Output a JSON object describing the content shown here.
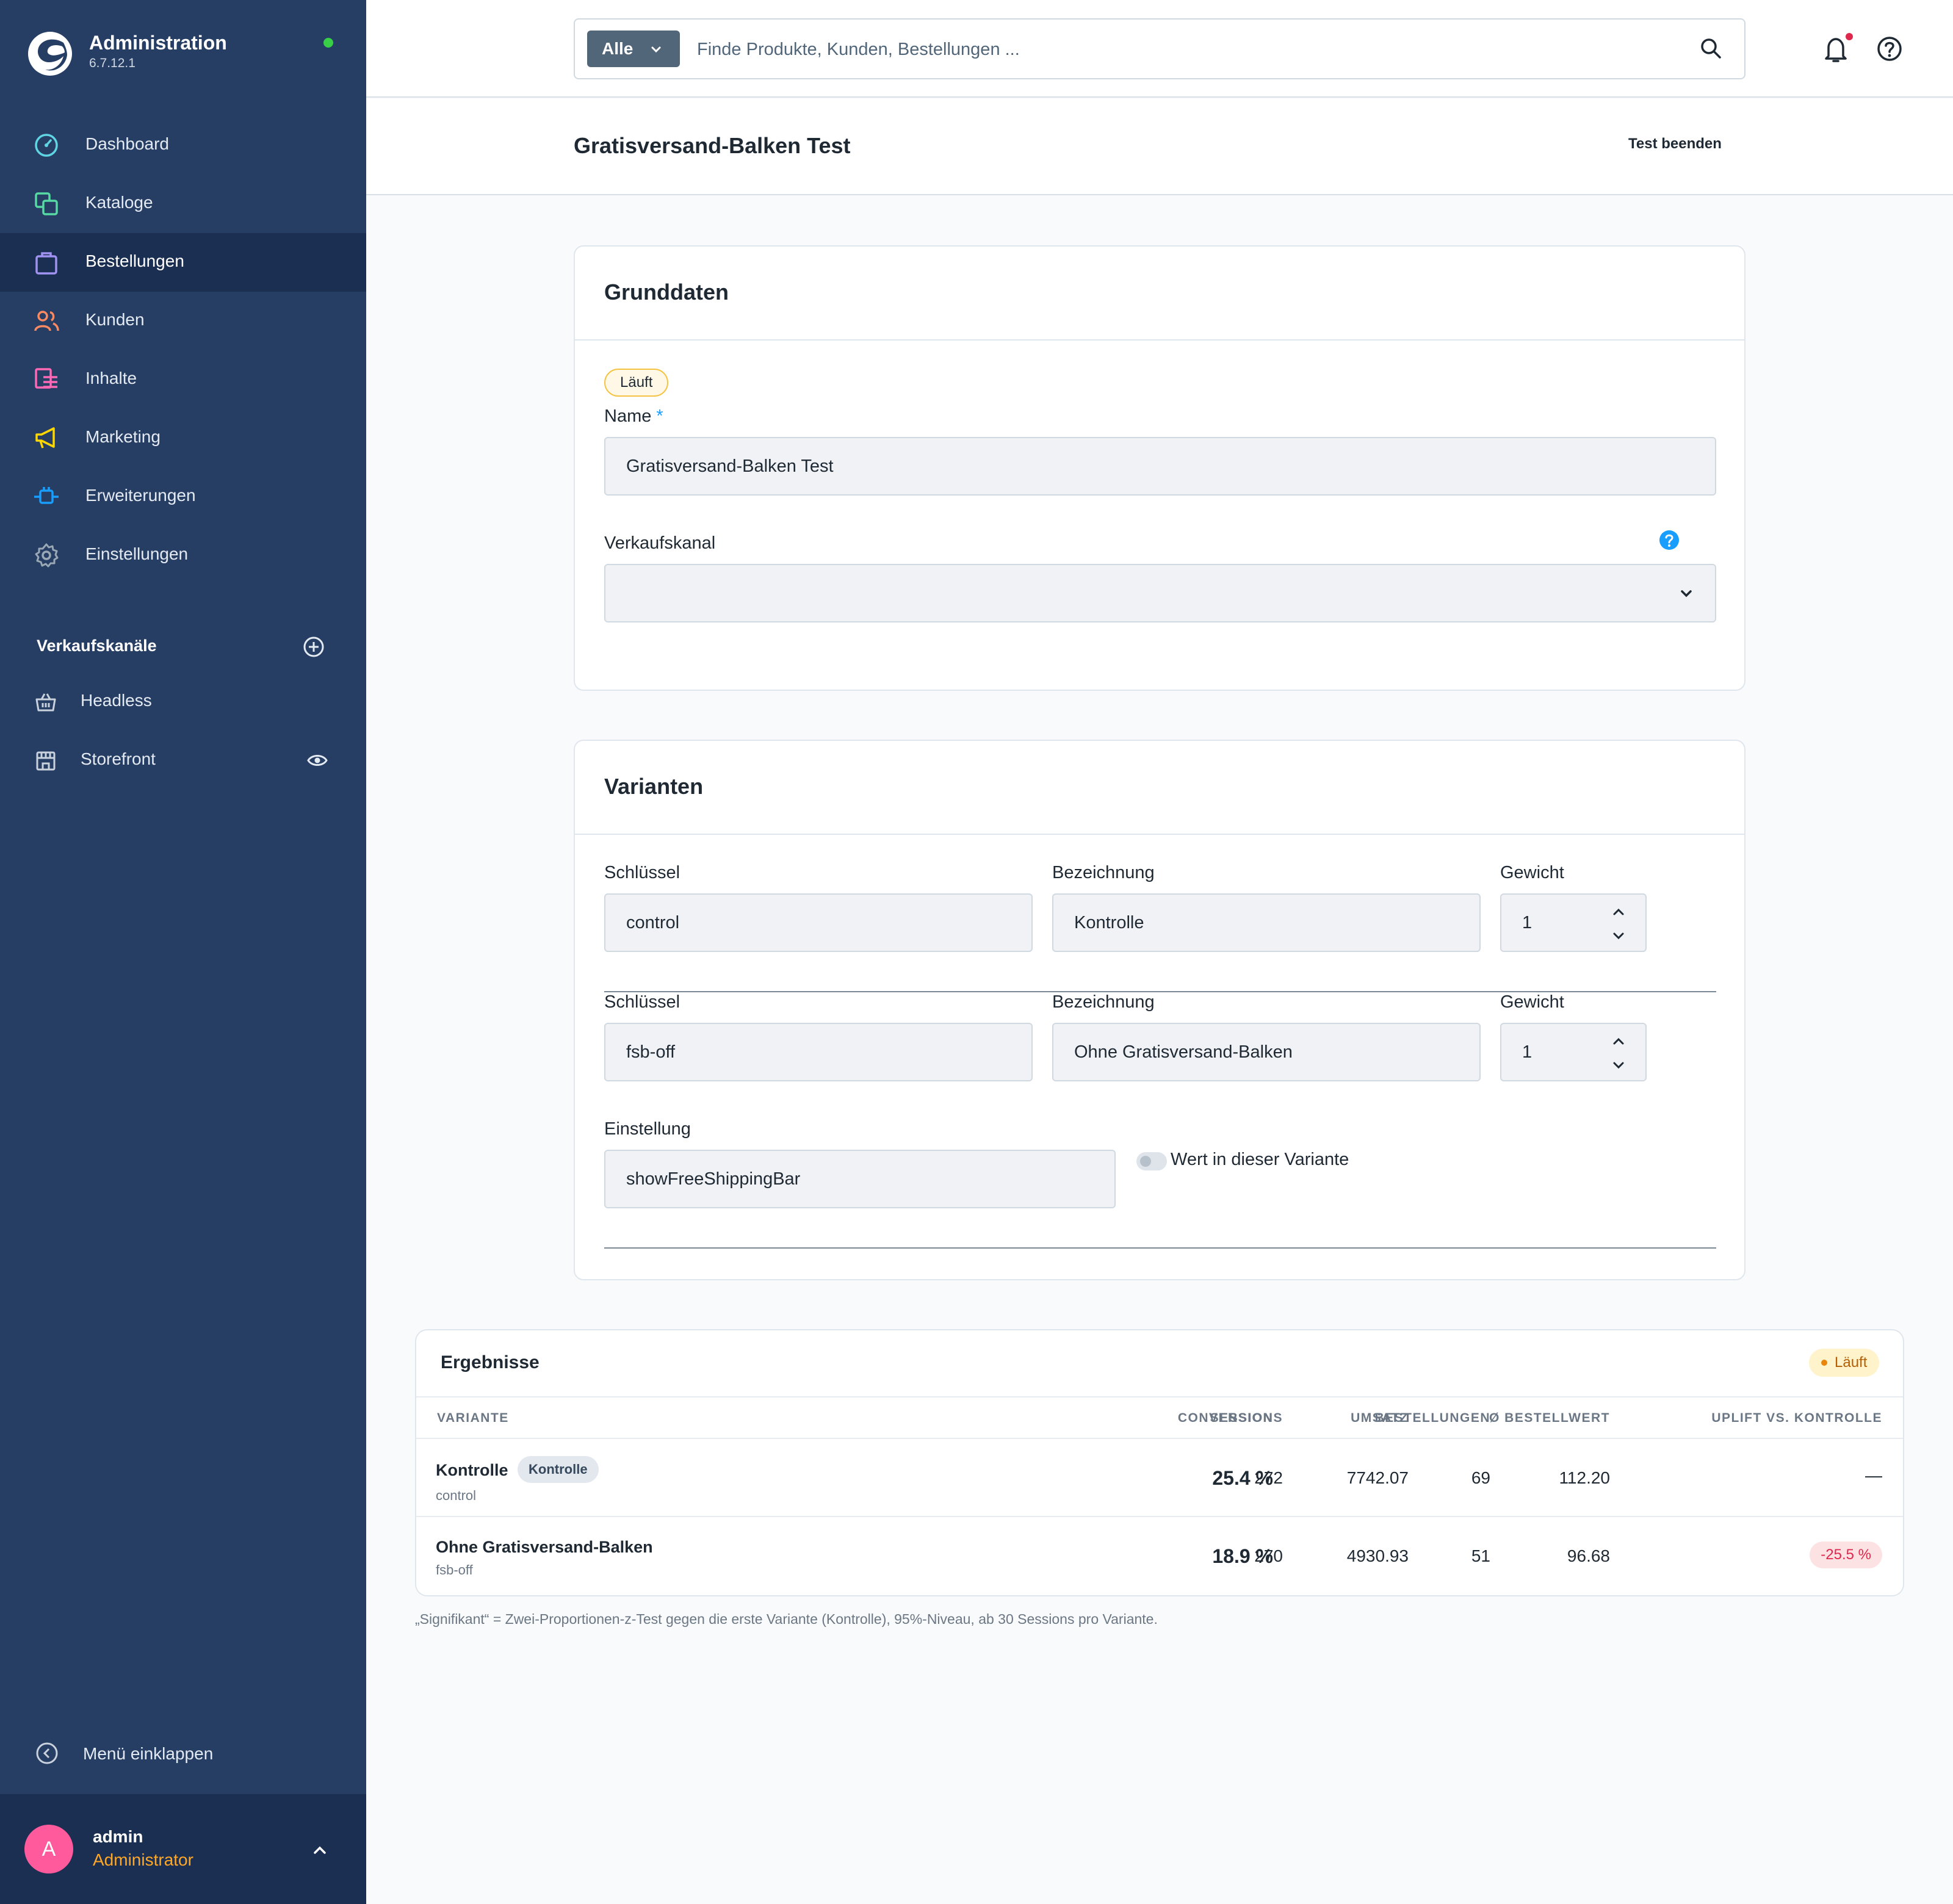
{
  "app": {
    "title": "Administration",
    "version": "6.7.12.1"
  },
  "nav": [
    {
      "label": "Dashboard",
      "icon": "dashboard-icon",
      "color": "#5fd4e3"
    },
    {
      "label": "Kataloge",
      "icon": "catalog-icon",
      "color": "#57d9a3"
    },
    {
      "label": "Bestellungen",
      "icon": "orders-icon",
      "color": "#a092f0"
    },
    {
      "label": "Kunden",
      "icon": "customers-icon",
      "color": "#f88962"
    },
    {
      "label": "Inhalte",
      "icon": "content-icon",
      "color": "#ff68b4"
    },
    {
      "label": "Marketing",
      "icon": "marketing-icon",
      "color": "#ffd700"
    },
    {
      "label": "Erweiterungen",
      "icon": "extensions-icon",
      "color": "#189eff"
    },
    {
      "label": "Einstellungen",
      "icon": "settings-icon",
      "color": "#9aa8b5"
    }
  ],
  "channels": {
    "title": "Verkaufskanäle",
    "items": [
      "Headless",
      "Storefront"
    ]
  },
  "collapse_label": "Menü einklappen",
  "user": {
    "initial": "A",
    "name": "admin",
    "role": "Administrator"
  },
  "search": {
    "type": "Alle",
    "placeholder": "Finde Produkte, Kunden, Bestellungen ..."
  },
  "page": {
    "title": "Gratisversand-Balken Test",
    "end_test": "Test beenden"
  },
  "basics": {
    "title": "Grunddaten",
    "status": "Läuft",
    "name_label": "Name",
    "required_mark": "*",
    "name_value": "Gratisversand-Balken Test",
    "channel_label": "Verkaufskanal",
    "channel_value": ""
  },
  "variants": {
    "title": "Varianten",
    "key_label": "Schlüssel",
    "name_label": "Bezeichnung",
    "weight_label": "Gewicht",
    "rows": [
      {
        "key": "control",
        "name": "Kontrolle",
        "weight": "1"
      },
      {
        "key": "fsb-off",
        "name": "Ohne Gratisversand-Balken",
        "weight": "1"
      }
    ],
    "setting_label": "Einstellung",
    "setting_value": "showFreeShippingBar",
    "toggle_label": "Wert in dieser Variante"
  },
  "results": {
    "title": "Ergebnisse",
    "status": "Läuft",
    "columns": [
      "VARIANTE",
      "SESSIONS",
      "BESTELLUNGEN",
      "CONVERSION",
      "UMSATZ",
      "Ø BESTELLWERT",
      "UPLIFT VS. KONTROLLE"
    ],
    "rows": [
      {
        "name": "Kontrolle",
        "badge": "Kontrolle",
        "key": "control",
        "sessions": "272",
        "orders": "69",
        "conversion": "25.4 %",
        "revenue": "7742.07",
        "aov": "112.20",
        "uplift": "—"
      },
      {
        "name": "Ohne Gratisversand-Balken",
        "key": "fsb-off",
        "sessions": "270",
        "orders": "51",
        "conversion": "18.9 %",
        "revenue": "4930.93",
        "aov": "96.68",
        "uplift": "-25.5 %"
      }
    ],
    "footnote": "„Signifikant“ = Zwei-Proportionen-z-Test gegen die erste Variante (Kontrolle), 95%-Niveau, ab 30 Sessions pro Variante."
  },
  "colors": {
    "sidebar": "#273e64",
    "sidebar_active": "#1b2f52",
    "accent": "#189eff",
    "online": "#37d046",
    "warning": "#ffa726",
    "danger": "#de294c"
  }
}
